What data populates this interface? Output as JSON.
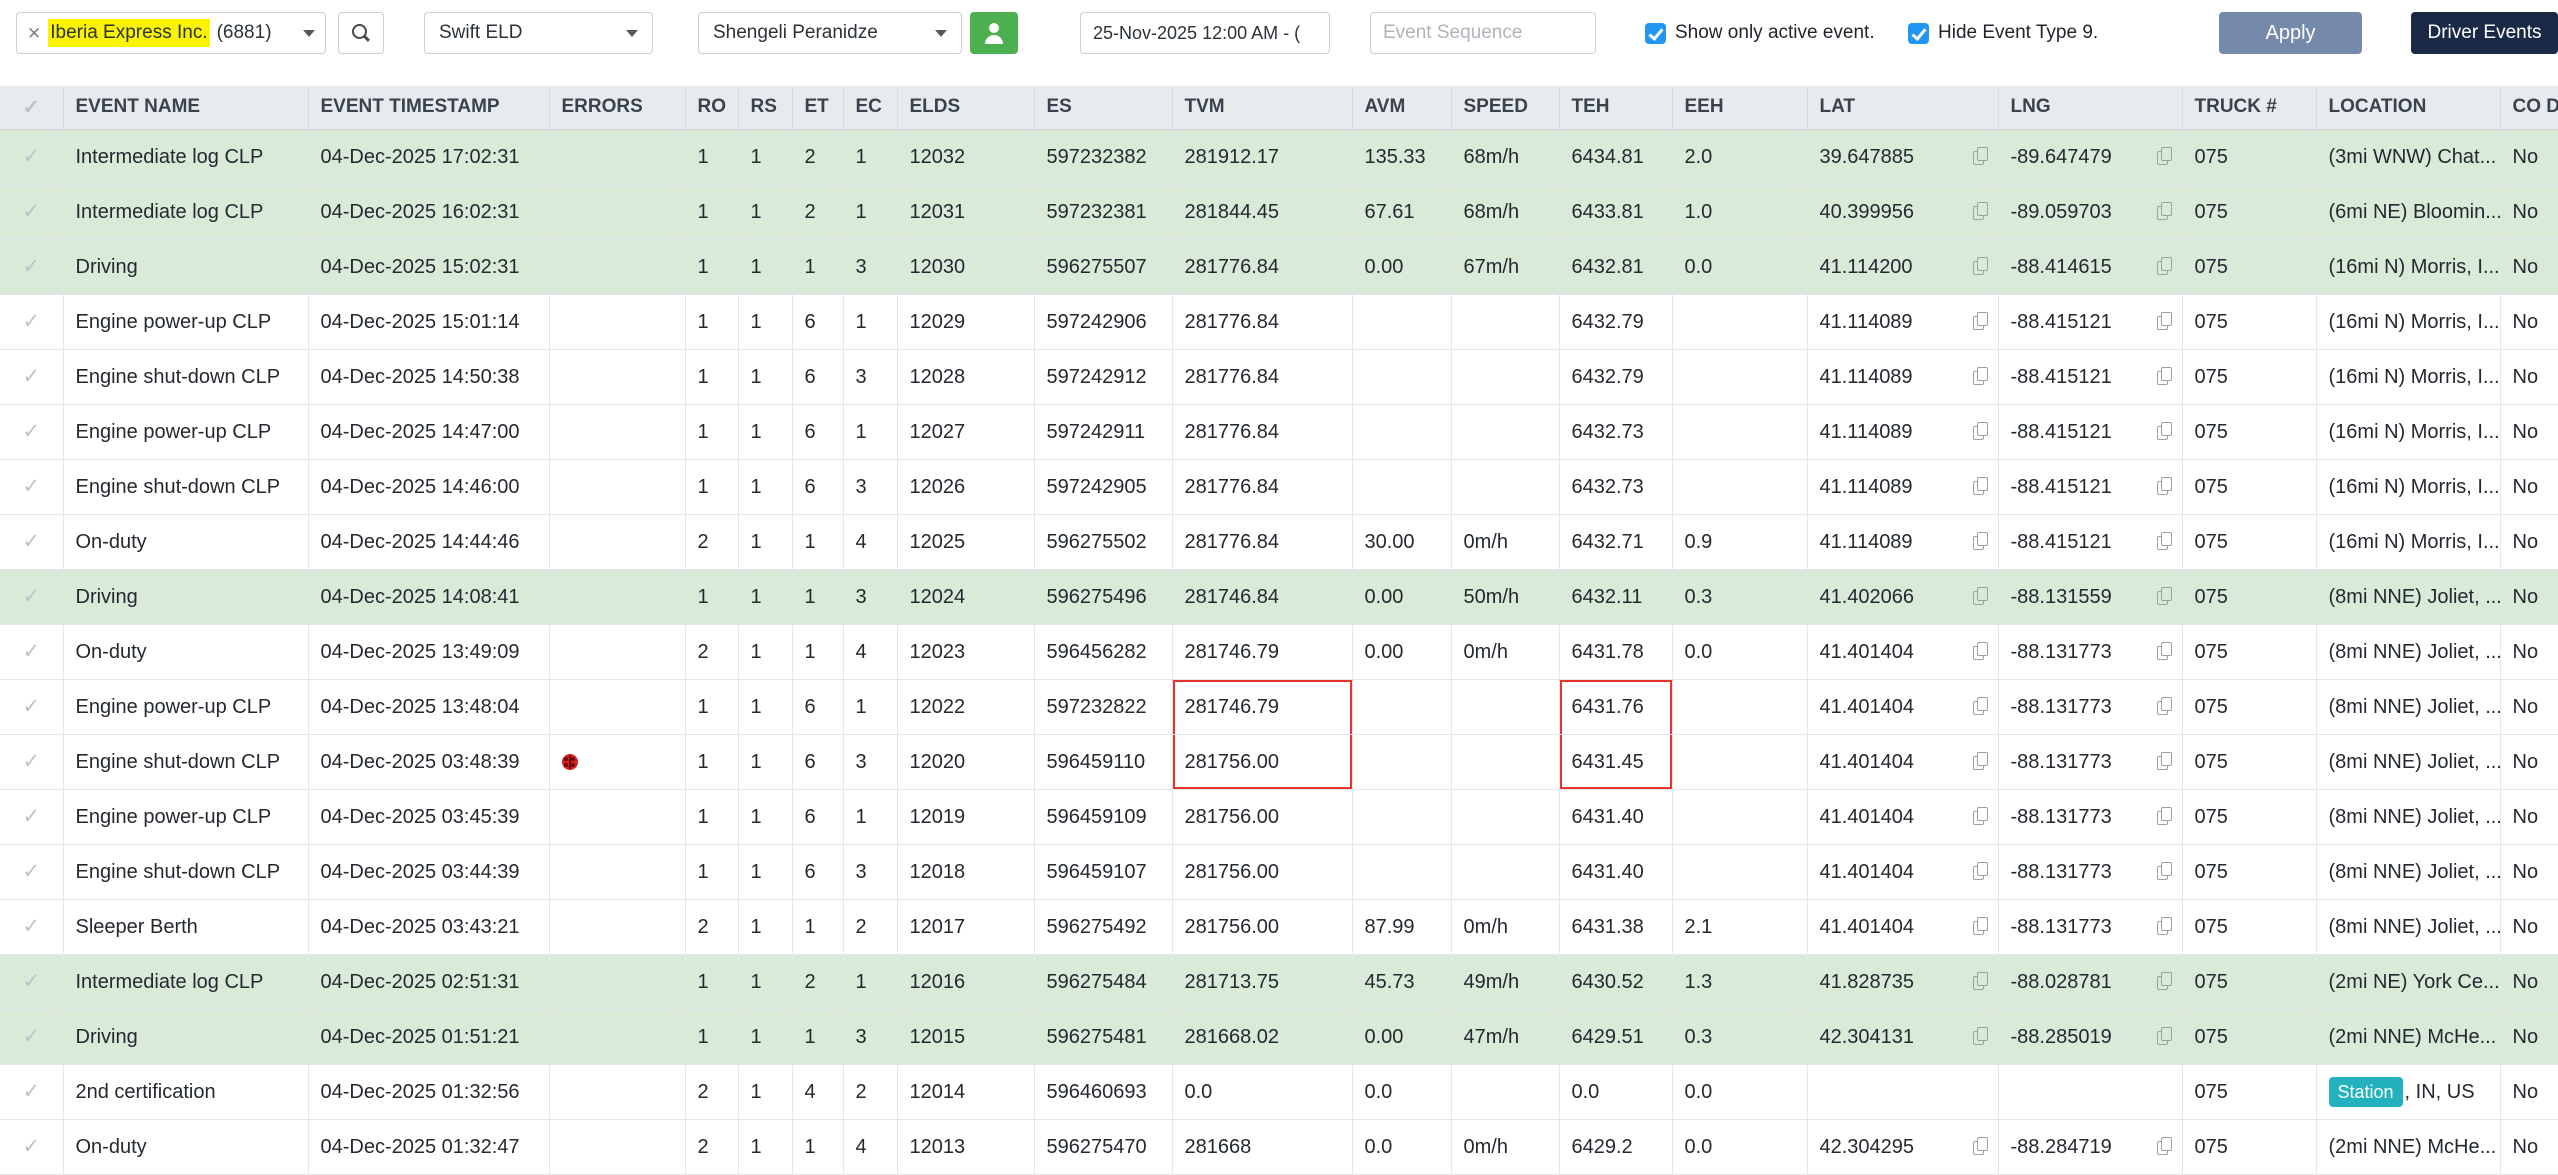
{
  "toolbar": {
    "company_picker": {
      "clear_icon": "✕",
      "name": "Iberia Express Inc.",
      "code": "(6881)"
    },
    "eld_select": "Swift ELD",
    "driver_select": "Shengeli Peranidze",
    "date_range": "25-Nov-2025 12:00 AM - (",
    "event_sequence_placeholder": "Event Sequence",
    "checkbox_active_label": "Show only active event.",
    "checkbox_hide9_label": "Hide Event Type 9.",
    "apply_label": "Apply",
    "driver_events_label": "Driver Events"
  },
  "colors": {
    "accent_blue": "#2196f3",
    "apply_bg": "#7589ab",
    "driver_events_bg": "#1b2947",
    "green_row": "#d9ead9",
    "highlight_yellow": "#fbf400",
    "error_box_red": "#e5322d",
    "badge_teal": "#23b2bd",
    "green_button": "#4caf50"
  },
  "table": {
    "columns": [
      "EVENT NAME",
      "EVENT TIMESTAMP",
      "ERRORS",
      "RO",
      "RS",
      "ET",
      "EC",
      "ELDS",
      "ES",
      "TVM",
      "AVM",
      "SPEED",
      "TEH",
      "EEH",
      "LAT",
      "LNG",
      "TRUCK #",
      "LOCATION",
      "CO DRIVER"
    ],
    "rows": [
      {
        "name": "Intermediate log CLP",
        "ts": "04-Dec-2025 17:02:31",
        "err": "",
        "ro": "1",
        "rs": "1",
        "et": "2",
        "ec": "1",
        "elds": "12032",
        "es": "597232382",
        "tvm": "281912.17",
        "avm": "135.33",
        "speed": "68m/h",
        "teh": "6434.81",
        "eeh": "2.0",
        "lat": "39.647885",
        "lng": "-89.647479",
        "truck": "075",
        "loc": "(3mi WNW) Chat...",
        "co": "No",
        "green": true
      },
      {
        "name": "Intermediate log CLP",
        "ts": "04-Dec-2025 16:02:31",
        "err": "",
        "ro": "1",
        "rs": "1",
        "et": "2",
        "ec": "1",
        "elds": "12031",
        "es": "597232381",
        "tvm": "281844.45",
        "avm": "67.61",
        "speed": "68m/h",
        "teh": "6433.81",
        "eeh": "1.0",
        "lat": "40.399956",
        "lng": "-89.059703",
        "truck": "075",
        "loc": "(6mi NE) Bloomin...",
        "co": "No",
        "green": true
      },
      {
        "name": "Driving",
        "ts": "04-Dec-2025 15:02:31",
        "err": "",
        "ro": "1",
        "rs": "1",
        "et": "1",
        "ec": "3",
        "elds": "12030",
        "es": "596275507",
        "tvm": "281776.84",
        "avm": "0.00",
        "speed": "67m/h",
        "teh": "6432.81",
        "eeh": "0.0",
        "lat": "41.114200",
        "lng": "-88.414615",
        "truck": "075",
        "loc": "(16mi N) Morris, I...",
        "co": "No",
        "green": true
      },
      {
        "name": "Engine power-up CLP",
        "ts": "04-Dec-2025 15:01:14",
        "err": "",
        "ro": "1",
        "rs": "1",
        "et": "6",
        "ec": "1",
        "elds": "12029",
        "es": "597242906",
        "tvm": "281776.84",
        "avm": "",
        "speed": "",
        "teh": "6432.79",
        "eeh": "",
        "lat": "41.114089",
        "lng": "-88.415121",
        "truck": "075",
        "loc": "(16mi N) Morris, I...",
        "co": "No",
        "green": false
      },
      {
        "name": "Engine shut-down CLP",
        "ts": "04-Dec-2025 14:50:38",
        "err": "",
        "ro": "1",
        "rs": "1",
        "et": "6",
        "ec": "3",
        "elds": "12028",
        "es": "597242912",
        "tvm": "281776.84",
        "avm": "",
        "speed": "",
        "teh": "6432.79",
        "eeh": "",
        "lat": "41.114089",
        "lng": "-88.415121",
        "truck": "075",
        "loc": "(16mi N) Morris, I...",
        "co": "No",
        "green": false
      },
      {
        "name": "Engine power-up CLP",
        "ts": "04-Dec-2025 14:47:00",
        "err": "",
        "ro": "1",
        "rs": "1",
        "et": "6",
        "ec": "1",
        "elds": "12027",
        "es": "597242911",
        "tvm": "281776.84",
        "avm": "",
        "speed": "",
        "teh": "6432.73",
        "eeh": "",
        "lat": "41.114089",
        "lng": "-88.415121",
        "truck": "075",
        "loc": "(16mi N) Morris, I...",
        "co": "No",
        "green": false
      },
      {
        "name": "Engine shut-down CLP",
        "ts": "04-Dec-2025 14:46:00",
        "err": "",
        "ro": "1",
        "rs": "1",
        "et": "6",
        "ec": "3",
        "elds": "12026",
        "es": "597242905",
        "tvm": "281776.84",
        "avm": "",
        "speed": "",
        "teh": "6432.73",
        "eeh": "",
        "lat": "41.114089",
        "lng": "-88.415121",
        "truck": "075",
        "loc": "(16mi N) Morris, I...",
        "co": "No",
        "green": false
      },
      {
        "name": "On-duty",
        "ts": "04-Dec-2025 14:44:46",
        "err": "",
        "ro": "2",
        "rs": "1",
        "et": "1",
        "ec": "4",
        "elds": "12025",
        "es": "596275502",
        "tvm": "281776.84",
        "avm": "30.00",
        "speed": "0m/h",
        "teh": "6432.71",
        "eeh": "0.9",
        "lat": "41.114089",
        "lng": "-88.415121",
        "truck": "075",
        "loc": "(16mi N) Morris, I...",
        "co": "No",
        "green": false
      },
      {
        "name": "Driving",
        "ts": "04-Dec-2025 14:08:41",
        "err": "",
        "ro": "1",
        "rs": "1",
        "et": "1",
        "ec": "3",
        "elds": "12024",
        "es": "596275496",
        "tvm": "281746.84",
        "avm": "0.00",
        "speed": "50m/h",
        "teh": "6432.11",
        "eeh": "0.3",
        "lat": "41.402066",
        "lng": "-88.131559",
        "truck": "075",
        "loc": "(8mi NNE) Joliet, ...",
        "co": "No",
        "green": true
      },
      {
        "name": "On-duty",
        "ts": "04-Dec-2025 13:49:09",
        "err": "",
        "ro": "2",
        "rs": "1",
        "et": "1",
        "ec": "4",
        "elds": "12023",
        "es": "596456282",
        "tvm": "281746.79",
        "avm": "0.00",
        "speed": "0m/h",
        "teh": "6431.78",
        "eeh": "0.0",
        "lat": "41.401404",
        "lng": "-88.131773",
        "truck": "075",
        "loc": "(8mi NNE) Joliet, ...",
        "co": "No",
        "green": false
      },
      {
        "name": "Engine power-up CLP",
        "ts": "04-Dec-2025 13:48:04",
        "err": "",
        "ro": "1",
        "rs": "1",
        "et": "6",
        "ec": "1",
        "elds": "12022",
        "es": "597232822",
        "tvm": "281746.79",
        "avm": "",
        "speed": "",
        "teh": "6431.76",
        "eeh": "",
        "lat": "41.401404",
        "lng": "-88.131773",
        "truck": "075",
        "loc": "(8mi NNE) Joliet, ...",
        "co": "No",
        "green": false,
        "tvm_box": "top",
        "teh_box": "top"
      },
      {
        "name": "Engine shut-down CLP",
        "ts": "04-Dec-2025 03:48:39",
        "err": "bug",
        "ro": "1",
        "rs": "1",
        "et": "6",
        "ec": "3",
        "elds": "12020",
        "es": "596459110",
        "tvm": "281756.00",
        "avm": "",
        "speed": "",
        "teh": "6431.45",
        "eeh": "",
        "lat": "41.401404",
        "lng": "-88.131773",
        "truck": "075",
        "loc": "(8mi NNE) Joliet, ...",
        "co": "No",
        "green": false,
        "tvm_box": "bottom",
        "teh_box": "bottom"
      },
      {
        "name": "Engine power-up CLP",
        "ts": "04-Dec-2025 03:45:39",
        "err": "",
        "ro": "1",
        "rs": "1",
        "et": "6",
        "ec": "1",
        "elds": "12019",
        "es": "596459109",
        "tvm": "281756.00",
        "avm": "",
        "speed": "",
        "teh": "6431.40",
        "eeh": "",
        "lat": "41.401404",
        "lng": "-88.131773",
        "truck": "075",
        "loc": "(8mi NNE) Joliet, ...",
        "co": "No",
        "green": false
      },
      {
        "name": "Engine shut-down CLP",
        "ts": "04-Dec-2025 03:44:39",
        "err": "",
        "ro": "1",
        "rs": "1",
        "et": "6",
        "ec": "3",
        "elds": "12018",
        "es": "596459107",
        "tvm": "281756.00",
        "avm": "",
        "speed": "",
        "teh": "6431.40",
        "eeh": "",
        "lat": "41.401404",
        "lng": "-88.131773",
        "truck": "075",
        "loc": "(8mi NNE) Joliet, ...",
        "co": "No",
        "green": false
      },
      {
        "name": "Sleeper Berth",
        "ts": "04-Dec-2025 03:43:21",
        "err": "",
        "ro": "2",
        "rs": "1",
        "et": "1",
        "ec": "2",
        "elds": "12017",
        "es": "596275492",
        "tvm": "281756.00",
        "avm": "87.99",
        "speed": "0m/h",
        "teh": "6431.38",
        "eeh": "2.1",
        "lat": "41.401404",
        "lng": "-88.131773",
        "truck": "075",
        "loc": "(8mi NNE) Joliet, ...",
        "co": "No",
        "green": false
      },
      {
        "name": "Intermediate log CLP",
        "ts": "04-Dec-2025 02:51:31",
        "err": "",
        "ro": "1",
        "rs": "1",
        "et": "2",
        "ec": "1",
        "elds": "12016",
        "es": "596275484",
        "tvm": "281713.75",
        "avm": "45.73",
        "speed": "49m/h",
        "teh": "6430.52",
        "eeh": "1.3",
        "lat": "41.828735",
        "lng": "-88.028781",
        "truck": "075",
        "loc": "(2mi NE) York Ce...",
        "co": "No",
        "green": true
      },
      {
        "name": "Driving",
        "ts": "04-Dec-2025 01:51:21",
        "err": "",
        "ro": "1",
        "rs": "1",
        "et": "1",
        "ec": "3",
        "elds": "12015",
        "es": "596275481",
        "tvm": "281668.02",
        "avm": "0.00",
        "speed": "47m/h",
        "teh": "6429.51",
        "eeh": "0.3",
        "lat": "42.304131",
        "lng": "-88.285019",
        "truck": "075",
        "loc": "(2mi NNE) McHe...",
        "co": "No",
        "green": true
      },
      {
        "name": "2nd certification",
        "ts": "04-Dec-2025 01:32:56",
        "err": "",
        "ro": "2",
        "rs": "1",
        "et": "4",
        "ec": "2",
        "elds": "12014",
        "es": "596460693",
        "tvm": "0.0",
        "avm": "0.0",
        "speed": "",
        "teh": "0.0",
        "eeh": "0.0",
        "lat": "",
        "lng": "",
        "truck": "075",
        "loc_badge": "Station",
        "loc": ", IN, US",
        "co": "No",
        "green": false
      },
      {
        "name": "On-duty",
        "ts": "04-Dec-2025 01:32:47",
        "err": "",
        "ro": "2",
        "rs": "1",
        "et": "1",
        "ec": "4",
        "elds": "12013",
        "es": "596275470",
        "tvm": "281668",
        "avm": "0.0",
        "speed": "0m/h",
        "teh": "6429.2",
        "eeh": "0.0",
        "lat": "42.304295",
        "lng": "-88.284719",
        "truck": "075",
        "loc": "(2mi NNE) McHe...",
        "co": "No",
        "green": false
      }
    ]
  }
}
